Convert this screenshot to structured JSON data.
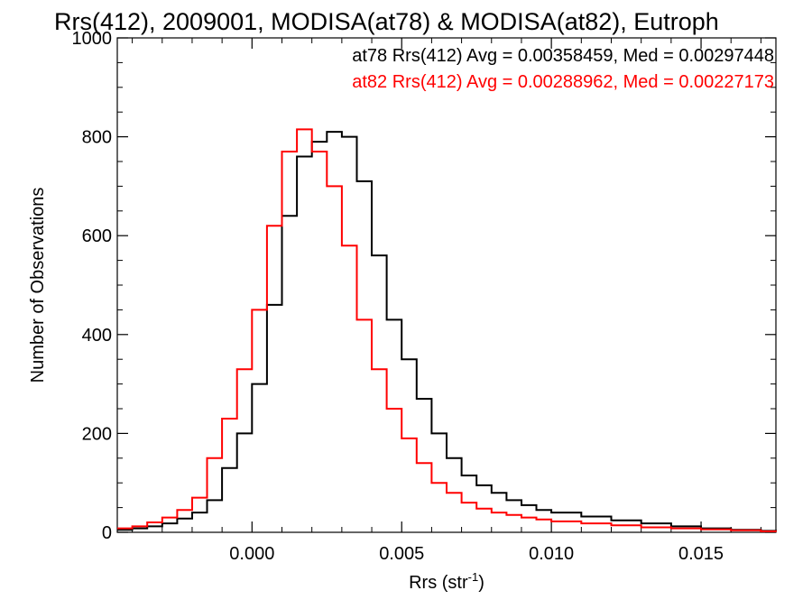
{
  "chart_data": {
    "type": "line",
    "title": "Rrs(412), 2009001, MODISA(at78) & MODISA(at82), Eutroph",
    "xlabel": "Rrs (str",
    "xlabel_sup": "-1",
    "xlabel_end": ")",
    "ylabel": "Number of Observations",
    "xlim": [
      -0.0045,
      0.0175
    ],
    "ylim": [
      0,
      1000
    ],
    "xticks": [
      0.0,
      0.005,
      0.01,
      0.015
    ],
    "xtick_labels": [
      "0.000",
      "0.005",
      "0.010",
      "0.015"
    ],
    "yticks": [
      0,
      200,
      400,
      600,
      800,
      1000
    ],
    "ytick_labels": [
      "0",
      "200",
      "400",
      "600",
      "800",
      "1000"
    ],
    "grid": false,
    "legend_position": "top-right",
    "series": [
      {
        "name": "at78",
        "color": "#000000",
        "stats_label": "at78 Rrs(412) Avg = 0.00358459, Med = 0.00297448",
        "x": [
          -0.0045,
          -0.004,
          -0.0035,
          -0.003,
          -0.0025,
          -0.002,
          -0.0015,
          -0.001,
          -0.0005,
          0.0,
          0.0005,
          0.001,
          0.0015,
          0.002,
          0.0025,
          0.003,
          0.0035,
          0.004,
          0.0045,
          0.005,
          0.0055,
          0.006,
          0.0065,
          0.007,
          0.0075,
          0.008,
          0.0085,
          0.009,
          0.0095,
          0.01,
          0.011,
          0.012,
          0.013,
          0.014,
          0.015,
          0.016,
          0.017,
          0.0175
        ],
        "y": [
          5,
          8,
          12,
          18,
          28,
          40,
          65,
          130,
          200,
          300,
          460,
          640,
          760,
          790,
          810,
          800,
          710,
          560,
          430,
          350,
          270,
          200,
          150,
          115,
          95,
          80,
          65,
          55,
          45,
          40,
          32,
          24,
          18,
          12,
          8,
          5,
          3,
          2
        ]
      },
      {
        "name": "at82",
        "color": "#ff0000",
        "stats_label": "at82 Rrs(412) Avg = 0.00288962, Med = 0.00227173",
        "x": [
          -0.0045,
          -0.004,
          -0.0035,
          -0.003,
          -0.0025,
          -0.002,
          -0.0015,
          -0.001,
          -0.0005,
          0.0,
          0.0005,
          0.001,
          0.0015,
          0.002,
          0.0025,
          0.003,
          0.0035,
          0.004,
          0.0045,
          0.005,
          0.0055,
          0.006,
          0.0065,
          0.007,
          0.0075,
          0.008,
          0.0085,
          0.009,
          0.0095,
          0.01,
          0.011,
          0.012,
          0.013,
          0.014,
          0.015,
          0.016,
          0.017,
          0.0175
        ],
        "y": [
          8,
          12,
          20,
          30,
          45,
          70,
          150,
          230,
          330,
          450,
          620,
          770,
          815,
          770,
          700,
          580,
          430,
          330,
          250,
          190,
          140,
          100,
          80,
          60,
          48,
          40,
          35,
          30,
          26,
          22,
          18,
          14,
          10,
          8,
          6,
          4,
          2,
          1
        ]
      }
    ]
  }
}
